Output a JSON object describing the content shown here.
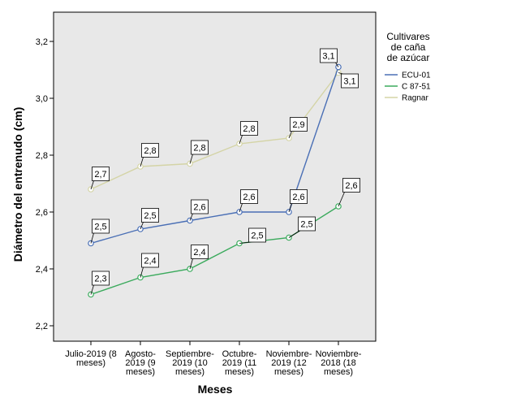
{
  "chart_data": {
    "type": "line",
    "xlabel": "Meses",
    "ylabel": "Diámetro del entrenudo (cm)",
    "ylim": [
      2.2,
      3.2
    ],
    "yticks": [
      "2,2",
      "2,4",
      "2,6",
      "2,8",
      "3,0",
      "3,2"
    ],
    "ytick_values": [
      2.2,
      2.4,
      2.6,
      2.8,
      3.0,
      3.2
    ],
    "categories": [
      [
        "Julio-2019 (8",
        "meses)"
      ],
      [
        "Agosto-",
        "2019 (9",
        "meses)"
      ],
      [
        "Septiembre-",
        "2019 (10",
        "meses)"
      ],
      [
        "Octubre-",
        "2019 (11",
        "meses)"
      ],
      [
        "Noviembre-",
        "2019 (12",
        "meses)"
      ],
      [
        "Noviembre-",
        "2018 (18",
        "meses)"
      ]
    ],
    "grid": false,
    "legend": {
      "title": [
        "Cultivares",
        "de caña",
        "de azúcar"
      ],
      "placement": "right"
    },
    "series": [
      {
        "name": "ECU-01",
        "color": "#4a6fb5",
        "values": [
          2.49,
          2.54,
          2.57,
          2.6,
          2.6,
          3.11
        ],
        "labels": [
          "2,5",
          "2,5",
          "2,6",
          "2,6",
          "2,6",
          "3,1"
        ]
      },
      {
        "name": "C 87-51",
        "color": "#3aaa5c",
        "values": [
          2.31,
          2.37,
          2.4,
          2.49,
          2.51,
          2.62
        ],
        "labels": [
          "2,3",
          "2,4",
          "2,4",
          "2,5",
          "2,5",
          "2,6"
        ]
      },
      {
        "name": "Ragnar",
        "color": "#d4d4a6",
        "values": [
          2.68,
          2.76,
          2.77,
          2.84,
          2.86,
          3.09
        ],
        "labels": [
          "2,7",
          "2,8",
          "2,8",
          "2,8",
          "2,9",
          "3,1"
        ]
      }
    ],
    "colors": {
      "plot_background": "#e8e8e8",
      "frame": "#000000"
    }
  }
}
